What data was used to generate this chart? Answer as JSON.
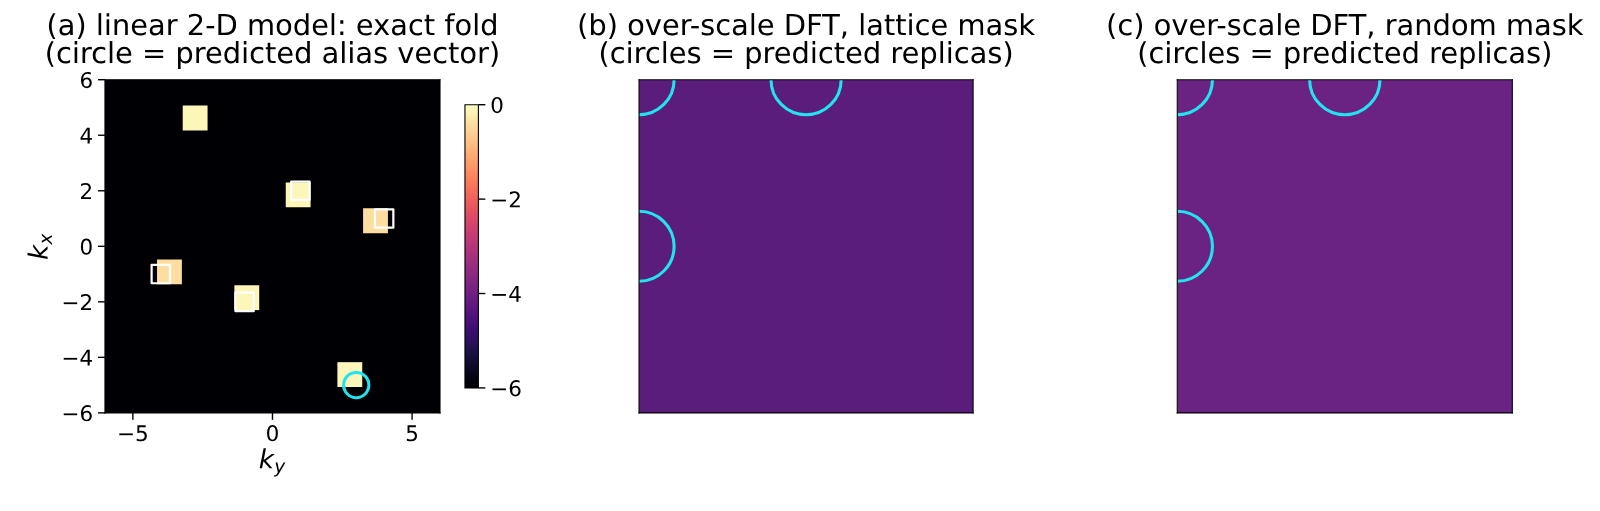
{
  "chart_data": [
    {
      "type": "scatter",
      "title": "(a) linear 2-D model: exact fold\n(circle = predicted alias vector)",
      "xlabel": "k$_{y}$",
      "ylabel": "k$_{x}$",
      "xlim": [
        -6,
        6
      ],
      "ylim": [
        -6,
        6
      ],
      "xticks": [
        -5,
        0,
        5
      ],
      "yticks": [
        -6,
        -4,
        -2,
        0,
        2,
        4,
        6
      ],
      "clim": [
        -6,
        0
      ],
      "cticks": [
        -6,
        -4,
        -2,
        0
      ],
      "series": [
        {
          "x": [
            -2.77,
            0.92,
            -0.92,
            2.77
          ],
          "values": [
            4.62,
            1.85,
            -1.85,
            -4.62
          ],
          "cvalues": [
            -0.1,
            -0.1,
            -0.1,
            -0.1
          ],
          "marker": "square"
        },
        {
          "x": [
            3.69,
            -3.69
          ],
          "values": [
            0.92,
            -0.92
          ],
          "cvalues": [
            -0.4,
            -0.4
          ],
          "marker": "square"
        },
        {
          "x": [
            1,
            4,
            -4,
            -1
          ],
          "values": [
            2,
            1,
            -1,
            -2
          ],
          "color": "#ffffff",
          "marker": "square"
        },
        {
          "x": [
            3
          ],
          "values": [
            -5
          ],
          "color": "#22e3f0",
          "marker": "circle"
        }
      ]
    },
    {
      "type": "other",
      "title": "(b) over-scale DFT, lattice mask\n(circles = predicted replicas)"
    },
    {
      "type": "other",
      "title": "(c) over-scale DFT, random mask\n(circles = predicted replicas)"
    }
  ]
}
